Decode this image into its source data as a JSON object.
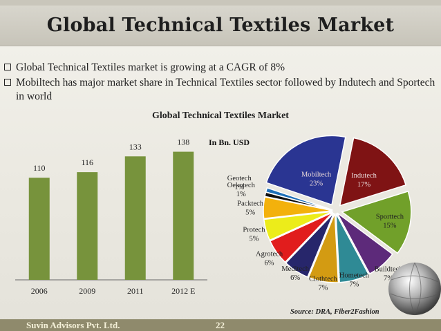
{
  "slide": {
    "title": "Global Technical Textiles Market",
    "bullets": [
      "Global Technical Textiles market is growing at a CAGR of 8%",
      "Mobiltech has major market share in Technical Textiles sector followed by Indutech and Sportech in world"
    ],
    "footer_company": "Suvin Advisors Pvt. Ltd.",
    "page_number": "22",
    "source": "Source: DRA, Fiber2Fashion"
  },
  "colors": {
    "bar": "#77933c"
  },
  "chart_data": [
    {
      "type": "bar",
      "title": "Global Technical Textiles Market",
      "categories": [
        "2006",
        "2009",
        "2011",
        "2012 E"
      ],
      "values": [
        110,
        116,
        133,
        138
      ],
      "ylim": [
        0,
        160
      ],
      "grid": false
    },
    {
      "type": "pie",
      "title": "In Bn. USD",
      "slices": [
        {
          "label": "Indutech",
          "value": 17,
          "display": "17%",
          "color": "#7f1314"
        },
        {
          "label": "Sporttech",
          "value": 15,
          "display": "15%",
          "color": "#71a02a"
        },
        {
          "label": "Buildtech",
          "value": 7,
          "display": "7%",
          "color": "#5d2a7a"
        },
        {
          "label": "Hometech",
          "value": 7,
          "display": "7%",
          "color": "#2f8a95"
        },
        {
          "label": "Clothtech",
          "value": 7,
          "display": "7%",
          "color": "#d39b12"
        },
        {
          "label": "Meditech",
          "value": 6,
          "display": "6%",
          "color": "#27266b"
        },
        {
          "label": "Agrotech",
          "value": 6,
          "display": "6%",
          "color": "#e11d1d"
        },
        {
          "label": "Protech",
          "value": 5,
          "display": "5%",
          "color": "#ecec1a"
        },
        {
          "label": "Packtech",
          "value": 5,
          "display": "5%",
          "color": "#f3b10c"
        },
        {
          "label": "Oekotech",
          "value": 1,
          "display": "1%",
          "color": "#111111"
        },
        {
          "label": "Geotech",
          "value": 1,
          "display": "1%",
          "color": "#1e70b8"
        },
        {
          "label": "Mobiltech",
          "value": 23,
          "display": "23%",
          "color": "#2a3592"
        }
      ]
    }
  ]
}
